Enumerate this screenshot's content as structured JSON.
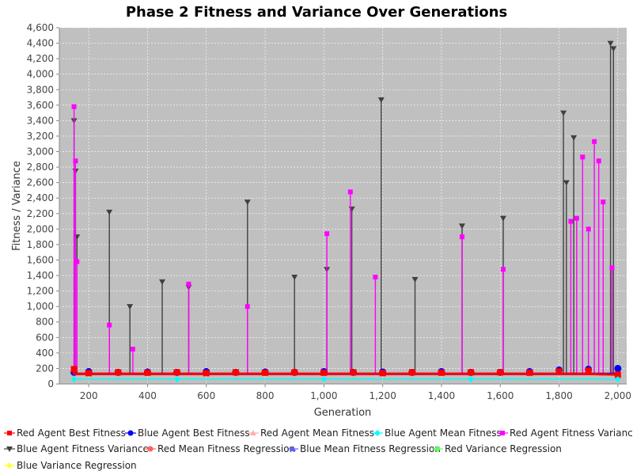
{
  "chart_data": {
    "type": "line",
    "title": "Phase 2 Fitness and Variance Over Generations",
    "xlabel": "Generation",
    "ylabel": "Fitness / Variance",
    "xlim": [
      100,
      2030
    ],
    "ylim": [
      0,
      4600
    ],
    "x_ticks": [
      200,
      400,
      600,
      800,
      1000,
      1200,
      1400,
      1600,
      1800,
      2000
    ],
    "x_tick_labels": [
      "200",
      "400",
      "600",
      "800",
      "1,000",
      "1,200",
      "1,400",
      "1,600",
      "1,800",
      "2,000"
    ],
    "y_ticks": [
      0,
      200,
      400,
      600,
      800,
      1000,
      1200,
      1400,
      1600,
      1800,
      2000,
      2200,
      2400,
      2600,
      2800,
      3000,
      3200,
      3400,
      3600,
      3800,
      4000,
      4200,
      4400,
      4600
    ],
    "y_tick_labels": [
      "0",
      "200",
      "400",
      "600",
      "800",
      "1,000",
      "1,200",
      "1,400",
      "1,600",
      "1,800",
      "2,000",
      "2,200",
      "2,400",
      "2,600",
      "2,800",
      "3,000",
      "3,200",
      "3,400",
      "3,600",
      "3,800",
      "4,000",
      "4,200",
      "4,400",
      "4,600"
    ],
    "grid": true,
    "plot_background": "#c0c0c0",
    "legend_position": "bottom",
    "series": [
      {
        "name": "Red Agent Best Fitness",
        "color": "#ff0000",
        "marker": "square",
        "x": [
          150,
          200,
          300,
          400,
          500,
          600,
          700,
          800,
          900,
          1000,
          1100,
          1200,
          1300,
          1400,
          1500,
          1600,
          1700,
          1800,
          1900,
          2000
        ],
        "values": [
          190,
          140,
          150,
          145,
          150,
          140,
          150,
          145,
          150,
          145,
          150,
          140,
          150,
          145,
          150,
          150,
          145,
          160,
          170,
          120
        ]
      },
      {
        "name": "Blue Agent Best Fitness",
        "color": "#0000ff",
        "marker": "circle",
        "x": [
          150,
          200,
          300,
          400,
          500,
          600,
          700,
          800,
          900,
          1000,
          1100,
          1200,
          1300,
          1400,
          1500,
          1600,
          1700,
          1800,
          1900,
          2000
        ],
        "values": [
          150,
          160,
          150,
          155,
          150,
          160,
          150,
          155,
          150,
          160,
          150,
          155,
          150,
          160,
          150,
          150,
          160,
          180,
          190,
          200
        ]
      },
      {
        "name": "Red Agent Mean Fitness",
        "color": "#ffafaf",
        "marker": "triangle-up",
        "x": [
          150,
          500,
          1000,
          1500,
          2000
        ],
        "values": [
          60,
          60,
          60,
          60,
          60
        ]
      },
      {
        "name": "Blue Agent Mean Fitness",
        "color": "#00ffff",
        "marker": "diamond",
        "x": [
          150,
          500,
          1000,
          1500,
          2000
        ],
        "values": [
          60,
          60,
          60,
          60,
          60
        ]
      },
      {
        "name": "Red Agent Fitness Variance",
        "color": "#ff00ff",
        "marker": "square",
        "x": [
          150,
          155,
          160,
          270,
          350,
          540,
          740,
          1010,
          1090,
          1175,
          1470,
          1610,
          1840,
          1860,
          1880,
          1900,
          1920,
          1935,
          1950,
          1980
        ],
        "values": [
          3580,
          2880,
          1580,
          760,
          450,
          1290,
          1000,
          1940,
          2480,
          1380,
          1900,
          1480,
          2100,
          2140,
          2930,
          2000,
          3130,
          2880,
          2350,
          1500
        ]
      },
      {
        "name": "Blue Agent Fitness Variance",
        "color": "#404040",
        "marker": "triangle-down",
        "x": [
          150,
          155,
          160,
          270,
          340,
          450,
          540,
          740,
          900,
          1010,
          1095,
          1195,
          1310,
          1470,
          1610,
          1815,
          1825,
          1850,
          1975,
          1985
        ],
        "values": [
          3400,
          2750,
          1900,
          2220,
          1000,
          1320,
          1250,
          2350,
          1380,
          1480,
          2260,
          3670,
          1350,
          2040,
          2140,
          3500,
          2600,
          3180,
          4400,
          4330
        ]
      },
      {
        "name": "Red Mean Fitness Regression",
        "color": "#ff6060",
        "marker": "circle",
        "x": [],
        "values": []
      },
      {
        "name": "Blue Mean Fitness Regression",
        "color": "#6060ff",
        "marker": "triangle-up",
        "x": [],
        "values": []
      },
      {
        "name": "Red Variance Regression",
        "color": "#60ff60",
        "marker": "diamond",
        "x": [],
        "values": []
      },
      {
        "name": "Blue Variance Regression",
        "color": "#ffff40",
        "marker": "diamond",
        "x": [],
        "values": []
      }
    ]
  }
}
